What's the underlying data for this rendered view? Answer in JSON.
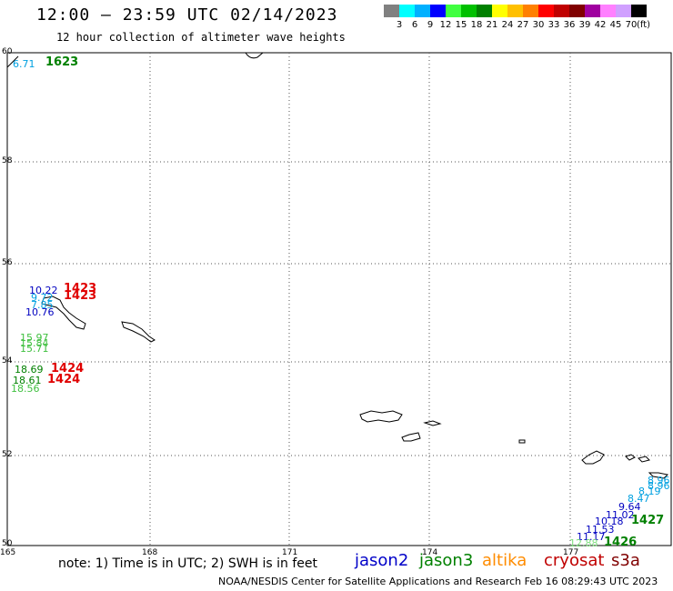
{
  "header": {
    "title": "12:00 — 23:59 UTC 02/14/2023",
    "subtitle": "12 hour collection of altimeter wave heights"
  },
  "colorbar": {
    "colors": [
      "#808080",
      "#00ffff",
      "#00b0ff",
      "#0000ff",
      "#40ff40",
      "#00c000",
      "#008000",
      "#ffff00",
      "#ffc000",
      "#ff8000",
      "#ff0000",
      "#c00000",
      "#800000",
      "#a000a0",
      "#ff80ff",
      "#d0a0ff",
      "#000000"
    ],
    "ticks": [
      "3",
      "6",
      "9",
      "12",
      "15",
      "18",
      "21",
      "24",
      "27",
      "30",
      "33",
      "36",
      "39",
      "42",
      "45",
      "70"
    ],
    "unit": "(ft)"
  },
  "axes": {
    "lon_labels": [
      "165",
      "168",
      "171",
      "174",
      "177"
    ],
    "lat_labels": [
      "60",
      "58",
      "56",
      "54",
      "52",
      "50"
    ]
  },
  "note": "note: 1) Time is in UTC; 2) SWH is in feet",
  "satellites": [
    {
      "name": "jason2",
      "color": "#0000c8"
    },
    {
      "name": "jason3",
      "color": "#008000"
    },
    {
      "name": "altika",
      "color": "#ff8c00"
    },
    {
      "name": "cryosat",
      "color": "#c00000"
    },
    {
      "name": "s3a",
      "color": "#800000"
    }
  ],
  "footer": "NOAA/NESDIS Center for Satellite Applications and Research   Feb 16 08:29:43 UTC 2023",
  "observations": [
    {
      "v": "6.71",
      "c": "#00a0e0"
    },
    {
      "v": "10.22",
      "c": "#0000c0"
    },
    {
      "v": "9.72",
      "c": "#00a0e0"
    },
    {
      "v": "7.85",
      "c": "#00a0e0"
    },
    {
      "v": "10.76",
      "c": "#0000c0"
    },
    {
      "v": "15.97",
      "c": "#40c040"
    },
    {
      "v": "15.84",
      "c": "#40c040"
    },
    {
      "v": "15.71",
      "c": "#40c040"
    },
    {
      "v": "18.69",
      "c": "#008000"
    },
    {
      "v": "18.61",
      "c": "#008000"
    },
    {
      "v": "18.56",
      "c": "#40c040"
    },
    {
      "v": "8.96",
      "c": "#00a0e0"
    },
    {
      "v": "8.96",
      "c": "#00a0e0"
    },
    {
      "v": "8.19",
      "c": "#00a0e0"
    },
    {
      "v": "8.47",
      "c": "#00a0e0"
    },
    {
      "v": "9.64",
      "c": "#0000c0"
    },
    {
      "v": "11.02",
      "c": "#0000c0"
    },
    {
      "v": "10.18",
      "c": "#0000c0"
    },
    {
      "v": "11.53",
      "c": "#0000c0"
    },
    {
      "v": "11.17",
      "c": "#0000c0"
    },
    {
      "v": "12.88",
      "c": "#80e080"
    }
  ],
  "track_times": [
    {
      "t": "1623",
      "c": "#008000"
    },
    {
      "t": "1423",
      "c": "#e00000"
    },
    {
      "t": "1423",
      "c": "#e00000"
    },
    {
      "t": "1424",
      "c": "#e00000"
    },
    {
      "t": "1424",
      "c": "#e00000"
    },
    {
      "t": "1427",
      "c": "#008000"
    },
    {
      "t": "1426",
      "c": "#008000"
    }
  ]
}
